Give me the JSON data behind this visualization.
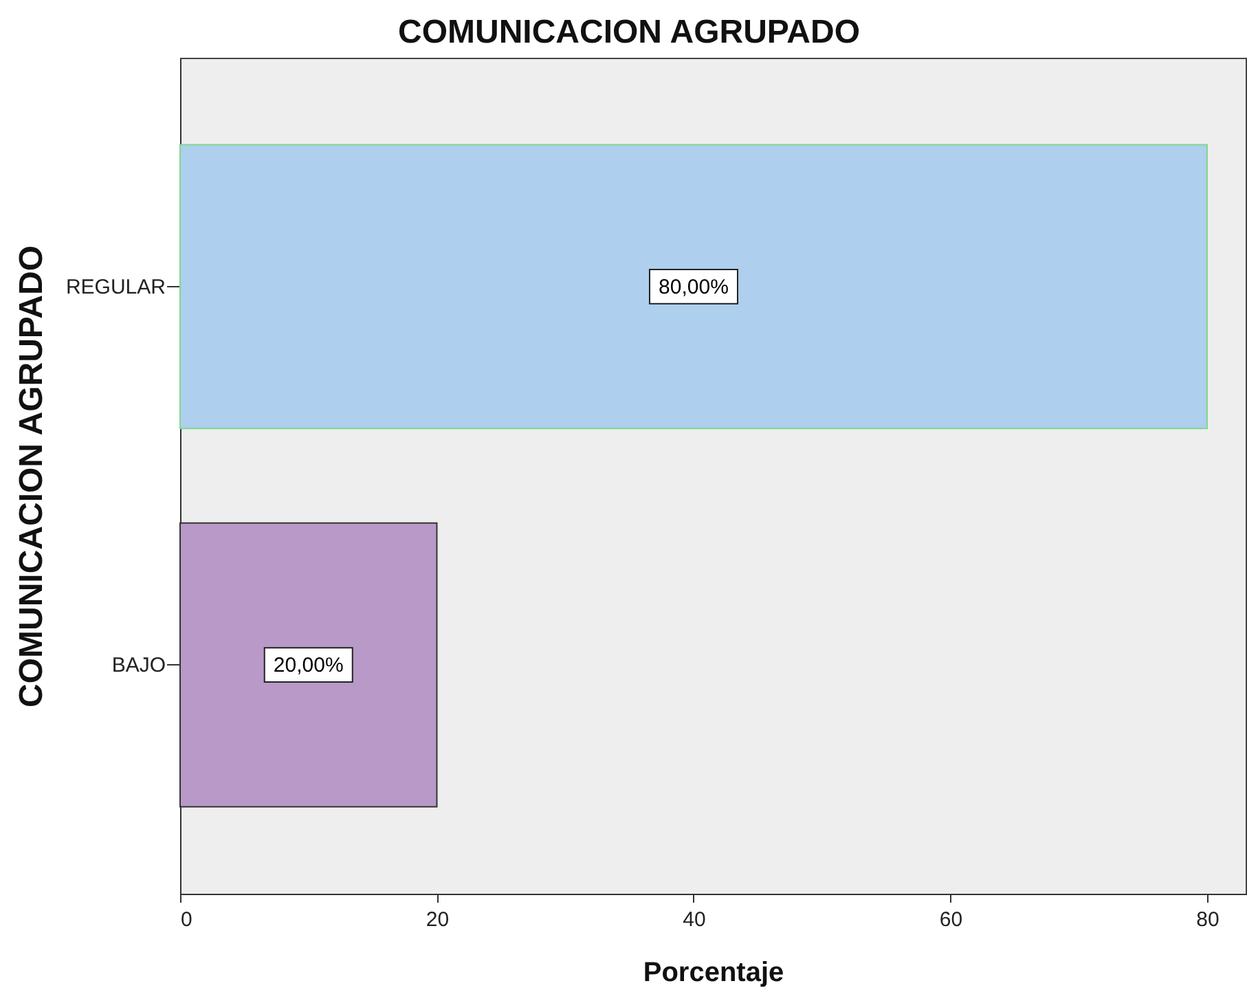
{
  "chart_data": {
    "type": "bar",
    "orientation": "horizontal",
    "title": "COMUNICACION AGRUPADO",
    "xlabel": "Porcentaje",
    "ylabel": "COMUNICACION AGRUPADO",
    "categories": [
      "REGULAR",
      "BAJO"
    ],
    "values": [
      80,
      20
    ],
    "colors": [
      "#aecfed",
      "#b899c8"
    ],
    "value_labels": [
      "80,00%",
      "20,00%"
    ],
    "xlim": [
      0,
      83
    ],
    "xticks": [
      0,
      20,
      40,
      60,
      80
    ],
    "grid": false,
    "legend": false
  }
}
